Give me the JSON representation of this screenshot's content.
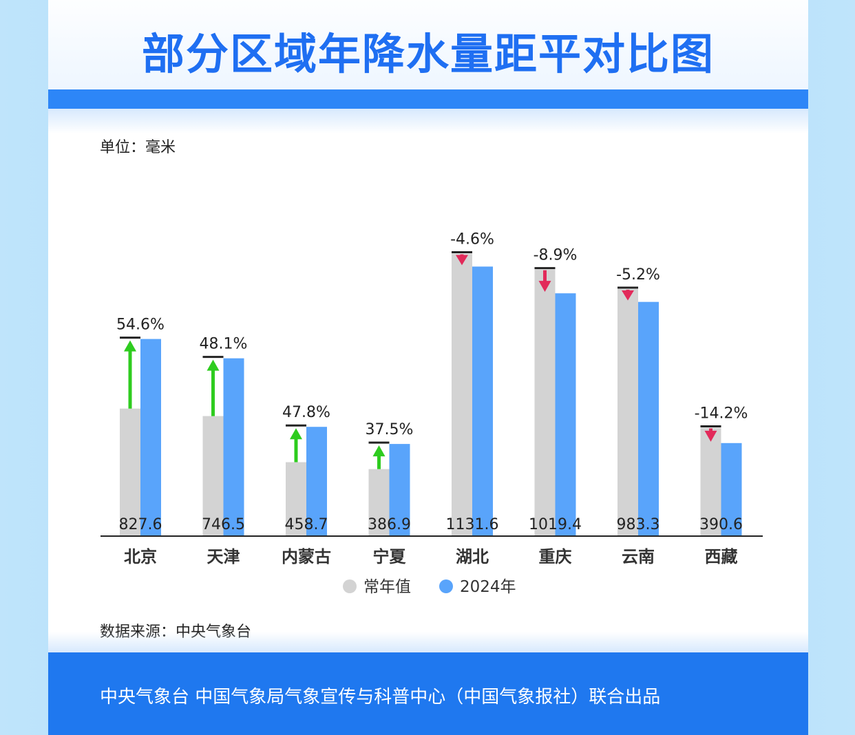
{
  "title": "部分区域年降水量距平对比图",
  "unit_label": "单位：毫米",
  "source_label": "数据来源：中央气象台",
  "footer": "中央气象台 中国气象局气象宣传与科普中心（中国气象报社）联合出品",
  "colors": {
    "normal": "#d3d3d3",
    "year2024": "#59a4fb",
    "increase": "#2ecc1f",
    "decrease": "#e22a5a",
    "title": "#1f6ff2",
    "band": "#2d86f7"
  },
  "chart_data": {
    "type": "bar",
    "title": "部分区域年降水量距平对比图",
    "ylabel": "单位：毫米",
    "xlabel": "",
    "categories": [
      "北京",
      "天津",
      "内蒙古",
      "宁夏",
      "湖北",
      "重庆",
      "云南",
      "西藏"
    ],
    "series": [
      {
        "name": "常年值",
        "values": [
          535.4,
          504.0,
          310.4,
          281.4,
          1186.2,
          1119.1,
          1037.2,
          455.2
        ]
      },
      {
        "name": "2024年",
        "values": [
          827.6,
          746.5,
          458.7,
          386.9,
          1131.6,
          1019.4,
          983.3,
          390.6
        ]
      }
    ],
    "value_labels": [
      "827.6",
      "746.5",
      "458.7",
      "386.9",
      "1131.6",
      "1019.4",
      "983.3",
      "390.6"
    ],
    "anomaly_labels": [
      "54.6%",
      "48.1%",
      "47.8%",
      "37.5%",
      "-4.6%",
      "-8.9%",
      "-5.2%",
      "-14.2%"
    ],
    "anomaly_percent": [
      54.6,
      48.1,
      47.8,
      37.5,
      -4.6,
      -8.9,
      -5.2,
      -14.2
    ],
    "ylim": [
      0,
      1220
    ],
    "grid": false,
    "legend": "bottom-center"
  }
}
